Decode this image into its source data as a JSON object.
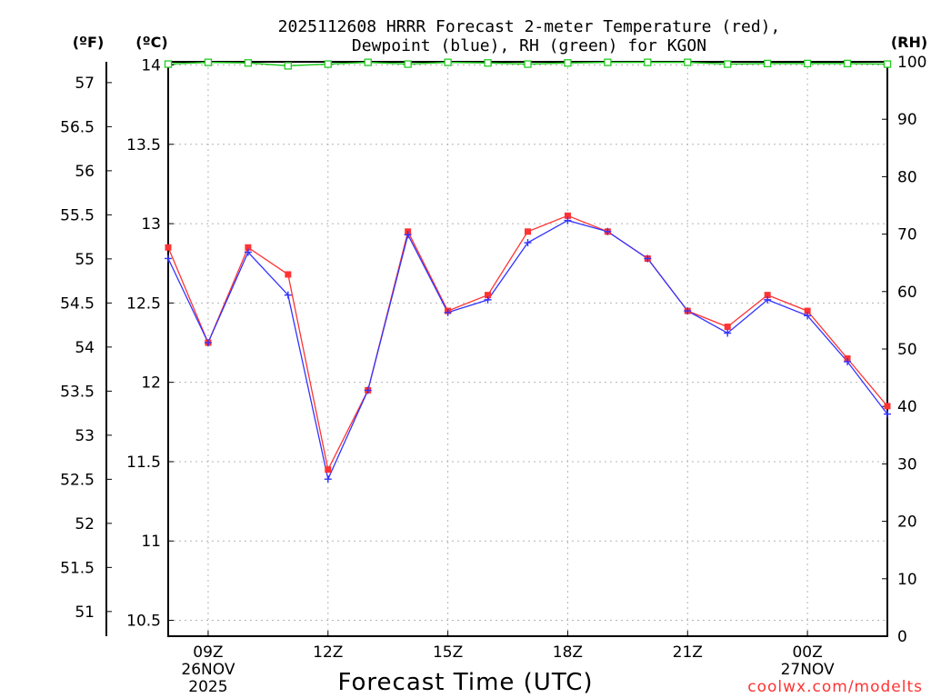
{
  "chart_data": {
    "type": "line",
    "title_line1": "2025112608 HRRR Forecast 2-meter Temperature (red),",
    "title_line2": "Dewpoint (blue), RH (green) for KGON",
    "xlabel": "Forecast Time (UTC)",
    "credit": "coolwx.com/modelts",
    "unit_left_outer": "(ºF)",
    "unit_left_inner": "(ºC)",
    "unit_right": "(RH)",
    "x_hours": [
      8,
      9,
      10,
      11,
      12,
      13,
      14,
      15,
      16,
      17,
      18,
      19,
      20,
      21,
      22,
      23,
      24,
      25,
      26
    ],
    "x_ticks": [
      {
        "hour": 9,
        "label": "09Z",
        "date": "26NOV",
        "year": "2025"
      },
      {
        "hour": 12,
        "label": "12Z",
        "date": "",
        "year": ""
      },
      {
        "hour": 15,
        "label": "15Z",
        "date": "",
        "year": ""
      },
      {
        "hour": 18,
        "label": "18Z",
        "date": "",
        "year": ""
      },
      {
        "hour": 21,
        "label": "21Z",
        "date": "",
        "year": ""
      },
      {
        "hour": 24,
        "label": "00Z",
        "date": "27NOV",
        "year": ""
      }
    ],
    "celsius_range": [
      10.4,
      14.02
    ],
    "celsius_ticks": [
      "10.5",
      "11",
      "11.5",
      "12",
      "12.5",
      "13",
      "13.5",
      "14"
    ],
    "fahrenheit_ticks": [
      "51",
      "51.5",
      "52",
      "52.5",
      "53",
      "53.5",
      "54",
      "54.5",
      "55",
      "55.5",
      "56",
      "56.5",
      "57"
    ],
    "rh_range": [
      0,
      100
    ],
    "rh_ticks": [
      "0",
      "10",
      "20",
      "30",
      "40",
      "50",
      "60",
      "70",
      "80",
      "90",
      "100"
    ],
    "series": [
      {
        "name": "Temperature",
        "color": "#ff3333",
        "values": [
          12.85,
          12.25,
          12.85,
          12.68,
          11.45,
          11.95,
          12.95,
          12.45,
          12.55,
          12.95,
          13.05,
          12.95,
          12.78,
          12.45,
          12.35,
          12.55,
          12.45,
          12.15,
          11.85
        ]
      },
      {
        "name": "Dewpoint",
        "color": "#3333ff",
        "values": [
          12.78,
          12.25,
          12.82,
          12.55,
          11.39,
          11.95,
          12.93,
          12.44,
          12.52,
          12.88,
          13.02,
          12.95,
          12.78,
          12.45,
          12.31,
          12.52,
          12.42,
          12.13,
          11.8
        ]
      },
      {
        "name": "RH",
        "color": "#22cc22",
        "values": [
          99.6,
          99.9,
          99.8,
          99.3,
          99.6,
          99.9,
          99.6,
          99.9,
          99.8,
          99.6,
          99.8,
          99.9,
          99.9,
          99.9,
          99.6,
          99.7,
          99.7,
          99.7,
          99.6
        ]
      }
    ]
  }
}
